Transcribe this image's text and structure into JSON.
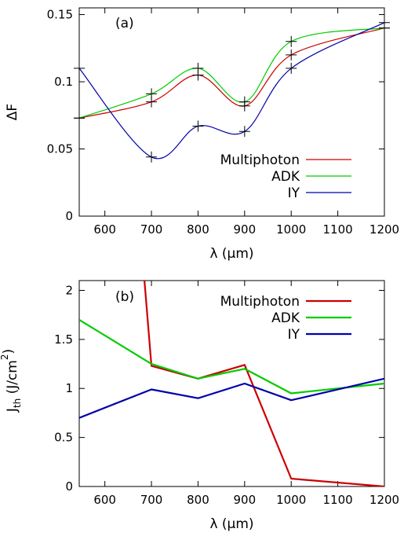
{
  "chart_data": [
    {
      "type": "line",
      "panel_label": "(a)",
      "xlabel": "λ (μm)",
      "ylabel": "ΔF",
      "xlim": [
        545,
        1200
      ],
      "ylim": [
        0,
        0.155
      ],
      "xticks": [
        "600",
        "700",
        "800",
        "900",
        "1000",
        "1100",
        "1200"
      ],
      "yticks": [
        "0",
        "0.05",
        "0.1",
        "0.15"
      ],
      "xtick_values": [
        600,
        700,
        800,
        900,
        1000,
        1100,
        1200
      ],
      "ytick_values": [
        0,
        0.05,
        0.1,
        0.15
      ],
      "legend_position": "right",
      "smooth": true,
      "markers": "+",
      "series": [
        {
          "name": "Multiphoton",
          "color": "#cc0000",
          "x": [
            545,
            700,
            800,
            900,
            1000,
            1200
          ],
          "y": [
            0.073,
            0.085,
            0.105,
            0.082,
            0.12,
            0.14
          ]
        },
        {
          "name": "ADK",
          "color": "#00cc00",
          "x": [
            545,
            700,
            800,
            900,
            1000,
            1200
          ],
          "y": [
            0.073,
            0.091,
            0.11,
            0.085,
            0.13,
            0.14
          ]
        },
        {
          "name": "IY",
          "color": "#0000aa",
          "x": [
            545,
            700,
            800,
            900,
            1000,
            1200
          ],
          "y": [
            0.11,
            0.044,
            0.067,
            0.063,
            0.11,
            0.144
          ]
        }
      ]
    },
    {
      "type": "line",
      "panel_label": "(b)",
      "xlabel": "λ (μm)",
      "ylabel_main": "J",
      "ylabel_sub": "th",
      "ylabel_unit": " (J/cm",
      "ylabel_sup": "2",
      "ylabel_close": ")",
      "xlim": [
        545,
        1200
      ],
      "ylim": [
        0,
        2.1
      ],
      "xticks": [
        "600",
        "700",
        "800",
        "900",
        "1000",
        "1100",
        "1200"
      ],
      "yticks": [
        "0",
        "0.5",
        "1",
        "1.5",
        "2"
      ],
      "xtick_values": [
        600,
        700,
        800,
        900,
        1000,
        1100,
        1200
      ],
      "ytick_values": [
        0,
        0.5,
        1,
        1.5,
        2
      ],
      "legend_position": "top-right",
      "smooth": false,
      "series": [
        {
          "name": "Multiphoton",
          "color": "#cc0000",
          "x": [
            685,
            700,
            800,
            900,
            1000,
            1200
          ],
          "y": [
            2.1,
            1.23,
            1.1,
            1.24,
            0.08,
            0.0
          ]
        },
        {
          "name": "ADK",
          "color": "#00cc00",
          "x": [
            545,
            700,
            800,
            900,
            1000,
            1200
          ],
          "y": [
            1.7,
            1.25,
            1.1,
            1.2,
            0.95,
            1.05
          ]
        },
        {
          "name": "IY",
          "color": "#0000aa",
          "x": [
            545,
            700,
            800,
            900,
            1000,
            1200
          ],
          "y": [
            0.7,
            0.99,
            0.9,
            1.05,
            0.88,
            1.1
          ]
        }
      ]
    }
  ]
}
